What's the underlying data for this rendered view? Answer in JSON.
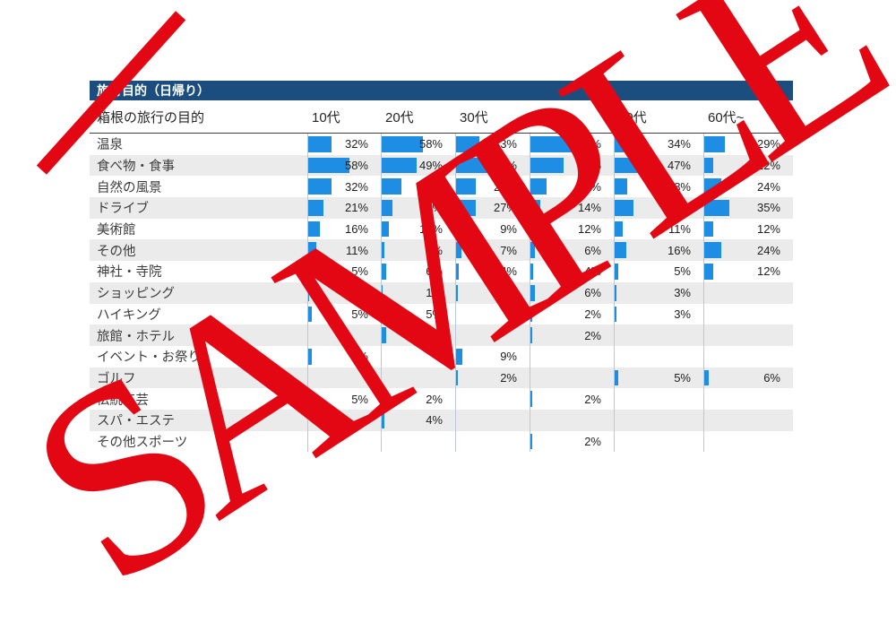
{
  "title": "旅行目的（日帰り）",
  "table": {
    "header_label": "箱根の旅行の目的"
  },
  "watermark": {
    "text": "SAMPLE"
  },
  "colors": {
    "title_bg": "#1b4e7e",
    "bar": "#1e8de4",
    "stripe": "#ebebeb",
    "separator": "#b9c9d9",
    "watermark": "#e30613"
  },
  "chart_data": {
    "type": "bar",
    "title": "旅行目的（日帰り）",
    "subtitle": "箱根の旅行の目的",
    "unit": "%",
    "orientation": "horizontal",
    "categories": [
      "温泉",
      "食べ物・食事",
      "自然の風景",
      "ドライブ",
      "美術館",
      "その他",
      "神社・寺院",
      "ショッピング",
      "ハイキング",
      "旅館・ホテル",
      "イベント・お祭り",
      "ゴルフ",
      "伝統工芸",
      "スパ・エステ",
      "その他スポーツ"
    ],
    "series": [
      {
        "name": "10代",
        "values": [
          32,
          58,
          32,
          21,
          16,
          11,
          5,
          1,
          5,
          null,
          5,
          null,
          5,
          null,
          null
        ]
      },
      {
        "name": "20代",
        "values": [
          58,
          49,
          27,
          15,
          10,
          4,
          6,
          1,
          5,
          6,
          null,
          null,
          2,
          4,
          null
        ]
      },
      {
        "name": "30代",
        "values": [
          33,
          47,
          27,
          27,
          9,
          7,
          4,
          2,
          null,
          null,
          9,
          2,
          null,
          null,
          null
        ]
      },
      {
        "name": "40代",
        "values": [
          64,
          46,
          22,
          14,
          12,
          6,
          4,
          6,
          2,
          2,
          null,
          null,
          2,
          null,
          2
        ]
      },
      {
        "name": "50代",
        "values": [
          34,
          47,
          18,
          26,
          11,
          16,
          5,
          3,
          3,
          null,
          null,
          5,
          null,
          null,
          null
        ]
      },
      {
        "name": "60代~",
        "values": [
          29,
          12,
          24,
          35,
          12,
          24,
          12,
          null,
          null,
          null,
          null,
          6,
          null,
          null,
          null
        ]
      }
    ]
  }
}
